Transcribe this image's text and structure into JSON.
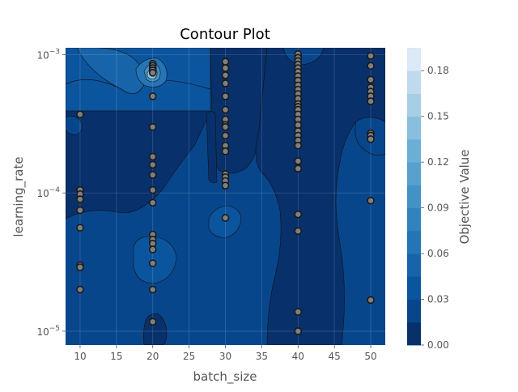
{
  "chart_data": {
    "type": "contour",
    "title": "Contour Plot",
    "xlabel": "batch_size",
    "ylabel": "learning_rate",
    "colorbar_label": "Objective Value",
    "xlim": [
      8,
      52
    ],
    "ylim_log10": [
      -5.1,
      -2.95
    ],
    "y_scale": "log",
    "x_ticks": [
      "10",
      "15",
      "20",
      "25",
      "30",
      "35",
      "40",
      "45",
      "50"
    ],
    "x_tick_values": [
      10,
      15,
      20,
      25,
      30,
      35,
      40,
      45,
      50
    ],
    "y_ticks": [
      {
        "base": "10",
        "exp": "−5",
        "log": -5
      },
      {
        "base": "10",
        "exp": "−4",
        "log": -4
      },
      {
        "base": "10",
        "exp": "−3",
        "log": -3
      }
    ],
    "colorbar_ticks": [
      "0.00",
      "0.03",
      "0.06",
      "0.09",
      "0.12",
      "0.15",
      "0.18"
    ],
    "colorbar_tick_values": [
      0,
      0.03,
      0.06,
      0.09,
      0.12,
      0.15,
      0.18
    ],
    "colorbar_range": [
      0,
      0.195
    ],
    "colorbar_levels": 13,
    "colormap": [
      "#08306b",
      "#08468c",
      "#0b559f",
      "#1864aa",
      "#2474b6",
      "#3282be",
      "#4292c6",
      "#58a1cf",
      "#6baed6",
      "#89bedc",
      "#a6cee4",
      "#c1d9ed",
      "#dce9f6",
      "#f0f7fd"
    ],
    "grid": true,
    "trials": [
      {
        "x": 10,
        "y": 0.00037
      },
      {
        "x": 10,
        "y": 0.000105
      },
      {
        "x": 10,
        "y": 9.8e-05
      },
      {
        "x": 10,
        "y": 9e-05
      },
      {
        "x": 10,
        "y": 7.5e-05
      },
      {
        "x": 10,
        "y": 5.6e-05
      },
      {
        "x": 10,
        "y": 3e-05
      },
      {
        "x": 10,
        "y": 2.9e-05
      },
      {
        "x": 10,
        "y": 2e-05
      },
      {
        "x": 20,
        "y": 0.00086
      },
      {
        "x": 20,
        "y": 0.00083
      },
      {
        "x": 20,
        "y": 0.0008
      },
      {
        "x": 20,
        "y": 0.00077
      },
      {
        "x": 20,
        "y": 0.00074
      },
      {
        "x": 20,
        "y": 0.0005
      },
      {
        "x": 20,
        "y": 0.0003
      },
      {
        "x": 20,
        "y": 0.000183
      },
      {
        "x": 20,
        "y": 0.00016
      },
      {
        "x": 20,
        "y": 0.000135
      },
      {
        "x": 20,
        "y": 0.000105
      },
      {
        "x": 20,
        "y": 8.5e-05
      },
      {
        "x": 20,
        "y": 5e-05
      },
      {
        "x": 20,
        "y": 4.6e-05
      },
      {
        "x": 20,
        "y": 4.3e-05
      },
      {
        "x": 20,
        "y": 3.9e-05
      },
      {
        "x": 20,
        "y": 3.1e-05
      },
      {
        "x": 20,
        "y": 2e-05
      },
      {
        "x": 20,
        "y": 1.17e-05
      },
      {
        "x": 30,
        "y": 0.00089
      },
      {
        "x": 30,
        "y": 0.0008
      },
      {
        "x": 30,
        "y": 0.00071
      },
      {
        "x": 30,
        "y": 0.00062
      },
      {
        "x": 30,
        "y": 0.0005
      },
      {
        "x": 30,
        "y": 0.0004
      },
      {
        "x": 30,
        "y": 0.00034
      },
      {
        "x": 30,
        "y": 0.00031
      },
      {
        "x": 30,
        "y": 0.0003
      },
      {
        "x": 30,
        "y": 0.00026
      },
      {
        "x": 30,
        "y": 0.00022
      },
      {
        "x": 30,
        "y": 0.0002
      },
      {
        "x": 30,
        "y": 0.000137
      },
      {
        "x": 30,
        "y": 0.00013
      },
      {
        "x": 30,
        "y": 0.000122
      },
      {
        "x": 30,
        "y": 0.000113
      },
      {
        "x": 30,
        "y": 6.6e-05
      },
      {
        "x": 40,
        "y": 0.00101
      },
      {
        "x": 40,
        "y": 0.00095
      },
      {
        "x": 40,
        "y": 0.0009
      },
      {
        "x": 40,
        "y": 0.00085
      },
      {
        "x": 40,
        "y": 0.0008
      },
      {
        "x": 40,
        "y": 0.00075
      },
      {
        "x": 40,
        "y": 0.0007
      },
      {
        "x": 40,
        "y": 0.00065
      },
      {
        "x": 40,
        "y": 0.0006
      },
      {
        "x": 40,
        "y": 0.00056
      },
      {
        "x": 40,
        "y": 0.00052
      },
      {
        "x": 40,
        "y": 0.00048
      },
      {
        "x": 40,
        "y": 0.00044
      },
      {
        "x": 40,
        "y": 0.00042
      },
      {
        "x": 40,
        "y": 0.0004
      },
      {
        "x": 40,
        "y": 0.00037
      },
      {
        "x": 40,
        "y": 0.00034
      },
      {
        "x": 40,
        "y": 0.00031
      },
      {
        "x": 40,
        "y": 0.00028
      },
      {
        "x": 40,
        "y": 0.00026
      },
      {
        "x": 40,
        "y": 0.00024
      },
      {
        "x": 40,
        "y": 0.00022
      },
      {
        "x": 40,
        "y": 0.00017
      },
      {
        "x": 40,
        "y": 0.00015
      },
      {
        "x": 40,
        "y": 7e-05
      },
      {
        "x": 40,
        "y": 5.3e-05
      },
      {
        "x": 40,
        "y": 1.38e-05
      },
      {
        "x": 40,
        "y": 1e-05
      },
      {
        "x": 50,
        "y": 0.00098
      },
      {
        "x": 50,
        "y": 0.00083
      },
      {
        "x": 50,
        "y": 0.00066
      },
      {
        "x": 50,
        "y": 0.00058
      },
      {
        "x": 50,
        "y": 0.00054
      },
      {
        "x": 50,
        "y": 0.0005
      },
      {
        "x": 50,
        "y": 0.00046
      },
      {
        "x": 50,
        "y": 0.00027
      },
      {
        "x": 50,
        "y": 0.00026
      },
      {
        "x": 50,
        "y": 0.000245
      },
      {
        "x": 50,
        "y": 8.8e-05
      },
      {
        "x": 50,
        "y": 1.68e-05
      }
    ]
  }
}
